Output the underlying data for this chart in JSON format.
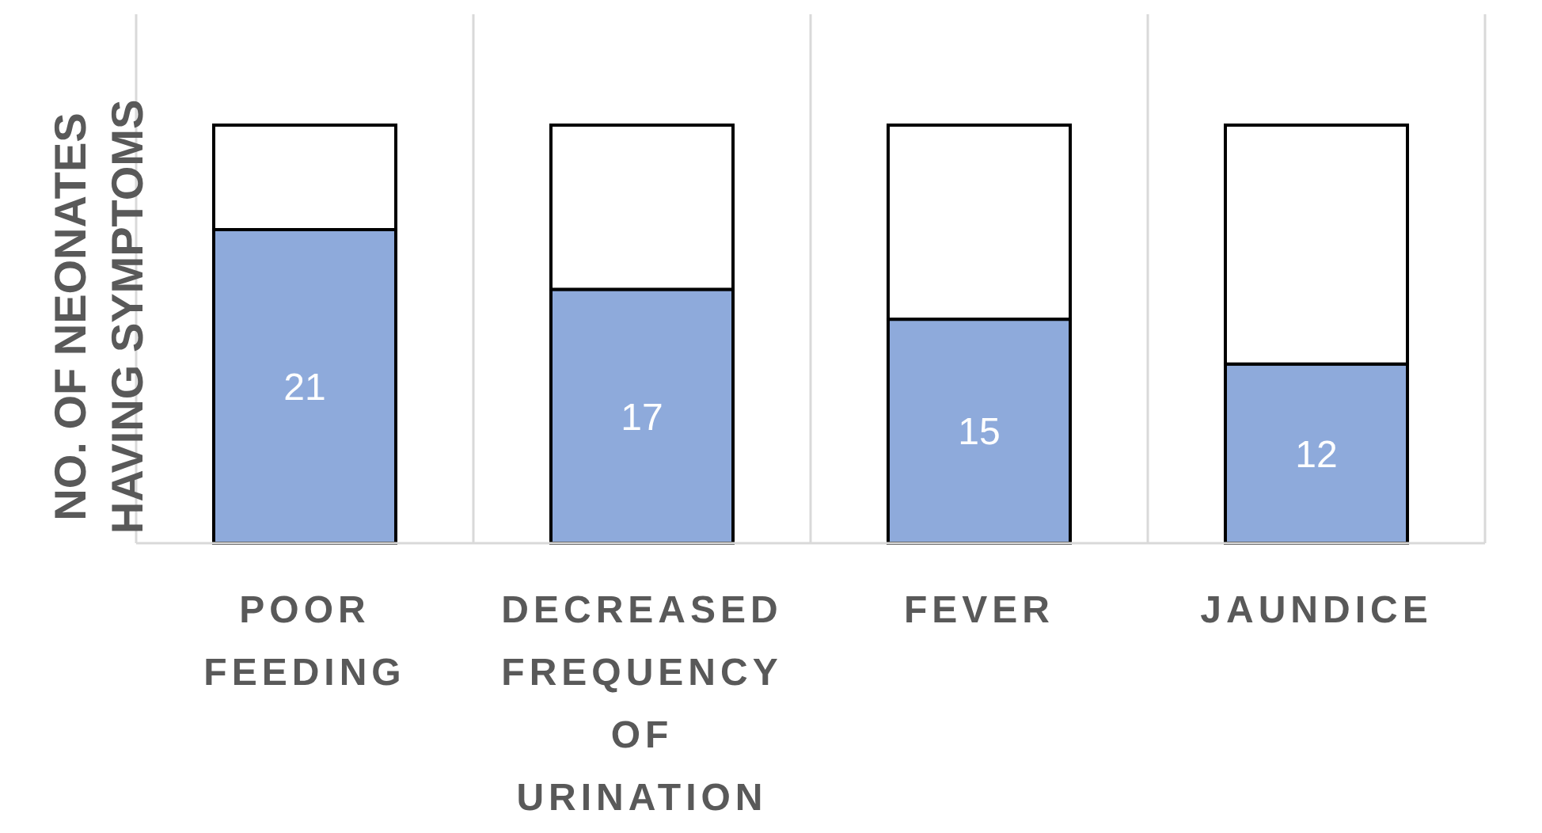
{
  "chart_data": {
    "type": "bar",
    "stacked": true,
    "ylabel": "NO. OF NEONATES HAVING SYMPTOMS",
    "categories": [
      "POOR FEEDING",
      "DECREASED FREQUENCY OF URINATION",
      "FEVER",
      "JAUNDICE"
    ],
    "series": [
      {
        "color": "#8eaadb",
        "values": [
          21,
          17,
          15,
          12
        ],
        "value_labels": [
          "21",
          "17",
          "15",
          "12"
        ]
      },
      {
        "color": "#ffffff",
        "values": [
          7,
          11,
          13,
          16
        ]
      }
    ],
    "grid": "x"
  }
}
